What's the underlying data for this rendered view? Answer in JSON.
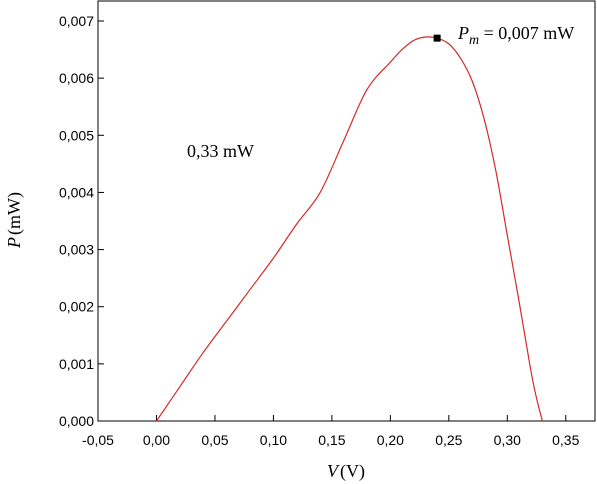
{
  "chart_data": {
    "type": "line",
    "title": "",
    "xlabel": {
      "symbol": "V",
      "unit": "(V)"
    },
    "ylabel": {
      "symbol": "P",
      "unit": "(mW)"
    },
    "xlim": [
      -0.05,
      0.375
    ],
    "ylim": [
      0.0,
      0.00735
    ],
    "x_ticks": [
      -0.05,
      0.0,
      0.05,
      0.1,
      0.15,
      0.2,
      0.25,
      0.3,
      0.35
    ],
    "x_tick_labels": [
      "-0,05",
      "0,00",
      "0,05",
      "0,10",
      "0,15",
      "0,20",
      "0,25",
      "0,30",
      "0,35"
    ],
    "y_ticks": [
      0.0,
      0.001,
      0.002,
      0.003,
      0.004,
      0.005,
      0.006,
      0.007
    ],
    "y_tick_labels": [
      "0,000",
      "0,001",
      "0,002",
      "0,003",
      "0,004",
      "0,005",
      "0,006",
      "0,007"
    ],
    "grid": false,
    "colors": {
      "line": "#d42a2a",
      "marker": "#000000",
      "axes": "#000000"
    },
    "series": [
      {
        "x": [
          0.0,
          0.02,
          0.04,
          0.06,
          0.08,
          0.1,
          0.12,
          0.14,
          0.16,
          0.18,
          0.2,
          0.21,
          0.22,
          0.23,
          0.24,
          0.25,
          0.26,
          0.27,
          0.28,
          0.29,
          0.3,
          0.31,
          0.32,
          0.325,
          0.33
        ],
        "y": [
          0.0,
          0.0006,
          0.0012,
          0.00175,
          0.0023,
          0.00285,
          0.00345,
          0.004,
          0.0049,
          0.0058,
          0.00628,
          0.0065,
          0.00666,
          0.00672,
          0.0067,
          0.0066,
          0.00635,
          0.00595,
          0.0053,
          0.0044,
          0.00325,
          0.0021,
          0.0009,
          0.0004,
          0.0
        ]
      }
    ],
    "max_point": {
      "x": 0.24,
      "y": 0.0067,
      "label_prefix": "P",
      "label_sub": "m",
      "label_value": " = 0,007 mW"
    },
    "annotations": [
      {
        "text": "0,33 mW",
        "x": 0.025,
        "y": 0.0048
      }
    ]
  }
}
